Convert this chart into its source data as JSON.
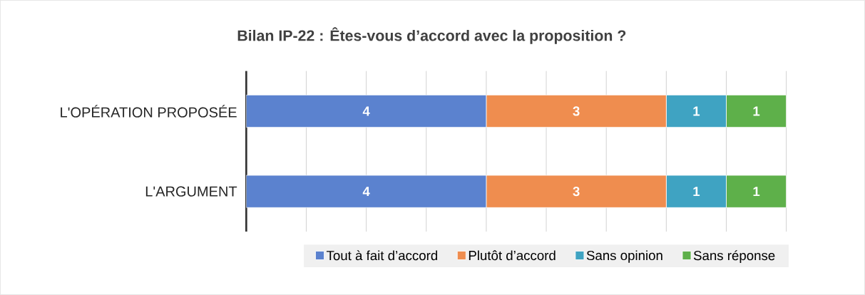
{
  "chart_data": {
    "type": "bar",
    "orientation": "horizontal",
    "stacked": true,
    "title": "Bilan IP-22 : Êtes-vous d’accord avec la proposition ?",
    "categories": [
      "L'OPÉRATION PROPOSÉE",
      "L'ARGUMENT"
    ],
    "series": [
      {
        "name": "Tout à fait d’accord",
        "color": "#5b82cf",
        "values": [
          4,
          4
        ]
      },
      {
        "name": "Plutôt d’accord",
        "color": "#ef8d4f",
        "values": [
          3,
          3
        ]
      },
      {
        "name": "Sans opinion",
        "color": "#3fa3c2",
        "values": [
          1,
          1
        ]
      },
      {
        "name": "Sans réponse",
        "color": "#5eb04a",
        "values": [
          1,
          1
        ]
      }
    ],
    "tick_labels": "y",
    "grid": "x",
    "legend": "bottom",
    "data_labels": true
  }
}
